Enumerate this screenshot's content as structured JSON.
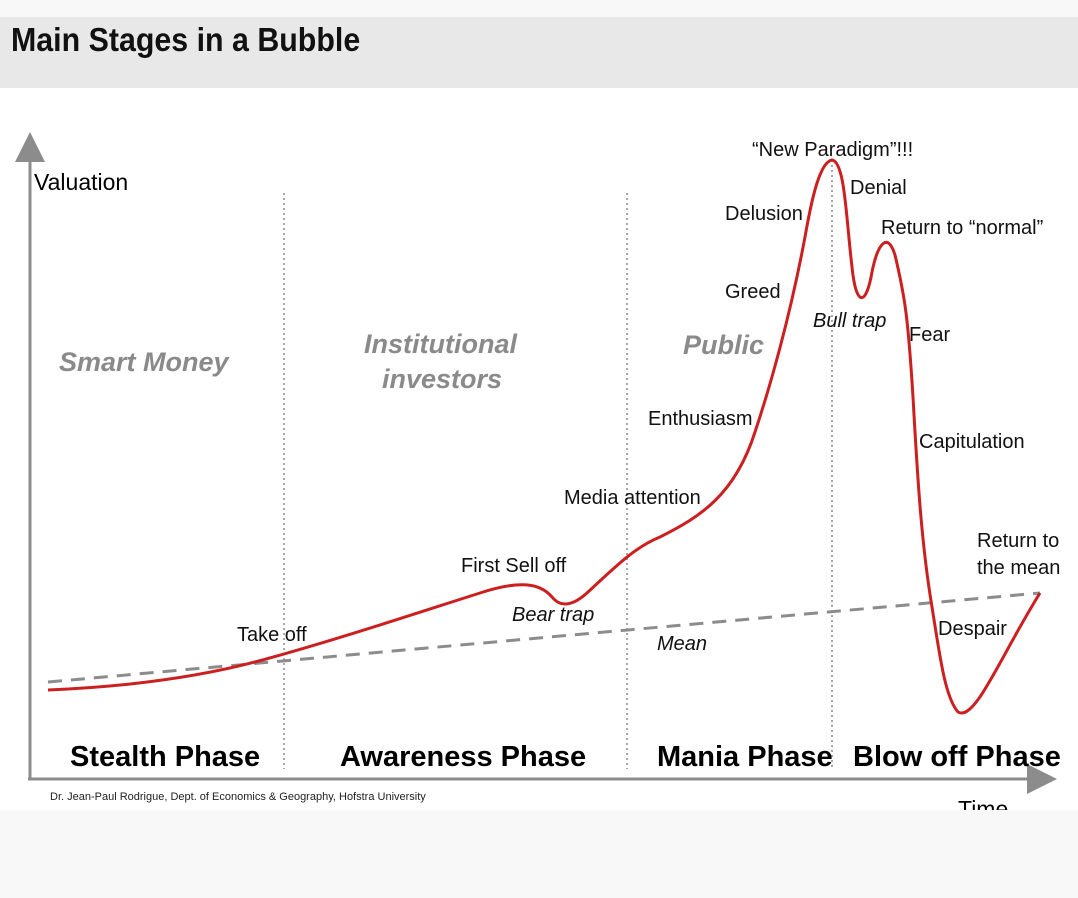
{
  "title": "Main Stages in a Bubble",
  "axes": {
    "y_label": "Valuation",
    "x_label": "Time"
  },
  "groups": [
    "Smart Money",
    "Institutional investors",
    "Public"
  ],
  "phases": [
    "Stealth Phase",
    "Awareness Phase",
    "Mania Phase",
    "Blow off Phase"
  ],
  "labels": {
    "take_off": "Take off",
    "first_sell_off": "First Sell off",
    "bear_trap": "Bear trap",
    "media_attention": "Media attention",
    "enthusiasm": "Enthusiasm",
    "greed": "Greed",
    "delusion": "Delusion",
    "new_paradigm": "“New Paradigm”!!!",
    "denial": "Denial",
    "return_to_normal": "Return to “normal”",
    "bull_trap": "Bull trap",
    "fear": "Fear",
    "capitulation": "Capitulation",
    "return_to_mean": "Return to the mean",
    "despair": "Despair",
    "mean": "Mean"
  },
  "credit": "Dr. Jean-Paul Rodrigue, Dept. of Economics & Geography, Hofstra University",
  "colors": {
    "curve": "#cc1f1f",
    "mean_line": "#8c8c8c",
    "group_text": "#8a8a8a"
  }
}
